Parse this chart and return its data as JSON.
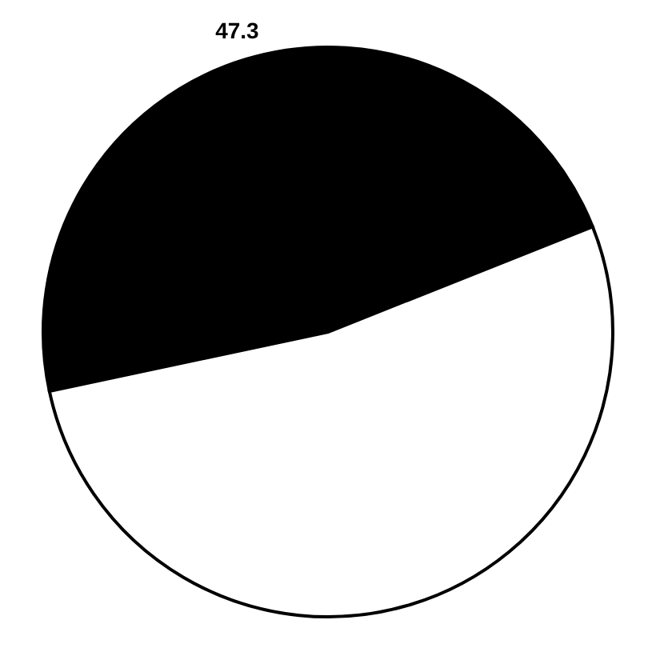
{
  "chart_data": {
    "type": "pie",
    "categories": [
      null,
      null
    ],
    "values": [
      47.3,
      52.7
    ],
    "colors": [
      "#000000",
      "#ffffff"
    ],
    "value_labels": [
      "47.3",
      null
    ]
  }
}
